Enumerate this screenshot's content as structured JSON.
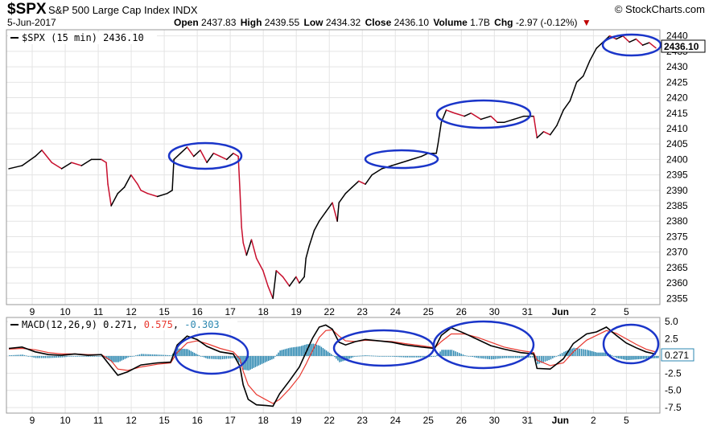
{
  "header": {
    "symbol": "$SPX",
    "name": "S&P 500 Large Cap Index",
    "exchange": "INDX",
    "source": "© StockCharts.com",
    "date": "5-Jun-2017",
    "open_label": "Open",
    "open": "2437.83",
    "high_label": "High",
    "high": "2439.55",
    "low_label": "Low",
    "low": "2434.32",
    "close_label": "Close",
    "close": "2436.10",
    "volume_label": "Volume",
    "volume": "1.7B",
    "chg_label": "Chg",
    "chg": "-2.97 (-0.12%)",
    "chg_arrow": "▼"
  },
  "price_legend": {
    "text": "$SPX (15 min) 2436.10"
  },
  "price_badge": "2436.10",
  "macd_legend": {
    "label": "MACD(12,26,9) 0.271, ",
    "signal": "0.575",
    "separator": ", ",
    "histogram": "-0.303"
  },
  "macd_badge": "0.271",
  "colors": {
    "price_up": "#000000",
    "price_down": "#c8102e",
    "macd": "#000000",
    "signal": "#e8382f",
    "histogram": "#2b87b0",
    "highlight": "#1a35c9",
    "grid": "#e4e4e4"
  },
  "chart_data": [
    {
      "type": "line",
      "title": "$SPX (15 min) 2436.10",
      "x_ticks": [
        "9",
        "10",
        "11",
        "12",
        "15",
        "16",
        "17",
        "18",
        "19",
        "22",
        "23",
        "24",
        "25",
        "26",
        "30",
        "31",
        "Jun",
        "2",
        "5"
      ],
      "y_ticks": [
        2355,
        2360,
        2365,
        2370,
        2375,
        2380,
        2385,
        2390,
        2395,
        2400,
        2405,
        2410,
        2415,
        2420,
        2425,
        2430,
        2435,
        2440
      ],
      "ylim": [
        2353,
        2442
      ],
      "series": [
        {
          "values": [
            [
              0.0,
              2397
            ],
            [
              0.4,
              2398
            ],
            [
              0.8,
              2401
            ],
            [
              1.0,
              2403
            ],
            [
              1.3,
              2399
            ],
            [
              1.6,
              2397
            ],
            [
              1.9,
              2399
            ],
            [
              2.2,
              2398
            ],
            [
              2.5,
              2400
            ],
            [
              2.8,
              2400
            ],
            [
              2.95,
              2399
            ],
            [
              3.0,
              2392
            ],
            [
              3.1,
              2385
            ],
            [
              3.3,
              2389
            ],
            [
              3.5,
              2391
            ],
            [
              3.7,
              2395
            ],
            [
              3.9,
              2392
            ],
            [
              4.0,
              2390
            ],
            [
              4.2,
              2389
            ],
            [
              4.5,
              2388
            ],
            [
              4.8,
              2389
            ],
            [
              4.95,
              2390
            ],
            [
              5.0,
              2400
            ],
            [
              5.2,
              2402
            ],
            [
              5.4,
              2404
            ],
            [
              5.6,
              2401
            ],
            [
              5.8,
              2403
            ],
            [
              6.0,
              2399
            ],
            [
              6.2,
              2402
            ],
            [
              6.4,
              2401
            ],
            [
              6.6,
              2400
            ],
            [
              6.8,
              2402
            ],
            [
              6.95,
              2401
            ],
            [
              7.0,
              2390
            ],
            [
              7.05,
              2378
            ],
            [
              7.1,
              2373
            ],
            [
              7.2,
              2369
            ],
            [
              7.35,
              2374
            ],
            [
              7.5,
              2368
            ],
            [
              7.7,
              2364
            ],
            [
              7.85,
              2359
            ],
            [
              8.0,
              2355
            ],
            [
              8.1,
              2364
            ],
            [
              8.3,
              2362
            ],
            [
              8.5,
              2359
            ],
            [
              8.7,
              2362
            ],
            [
              8.8,
              2360
            ],
            [
              8.95,
              2362
            ],
            [
              9.0,
              2368
            ],
            [
              9.1,
              2372
            ],
            [
              9.25,
              2377
            ],
            [
              9.4,
              2380
            ],
            [
              9.6,
              2383
            ],
            [
              9.8,
              2386
            ],
            [
              9.95,
              2380
            ],
            [
              10.0,
              2386
            ],
            [
              10.2,
              2389
            ],
            [
              10.4,
              2391
            ],
            [
              10.6,
              2393
            ],
            [
              10.8,
              2392
            ],
            [
              11.0,
              2395
            ],
            [
              11.3,
              2397
            ],
            [
              11.6,
              2398
            ],
            [
              11.9,
              2399
            ],
            [
              12.2,
              2400
            ],
            [
              12.5,
              2401
            ],
            [
              12.7,
              2402
            ],
            [
              12.95,
              2402
            ],
            [
              13.0,
              2405
            ],
            [
              13.1,
              2412
            ],
            [
              13.25,
              2416
            ],
            [
              13.5,
              2415
            ],
            [
              13.8,
              2414
            ],
            [
              14.0,
              2415
            ],
            [
              14.3,
              2413
            ],
            [
              14.6,
              2414
            ],
            [
              14.8,
              2412
            ],
            [
              15.0,
              2412
            ],
            [
              15.3,
              2413
            ],
            [
              15.6,
              2414
            ],
            [
              15.9,
              2414
            ],
            [
              16.0,
              2407
            ],
            [
              16.2,
              2409
            ],
            [
              16.4,
              2408
            ],
            [
              16.6,
              2411
            ],
            [
              16.8,
              2416
            ],
            [
              17.0,
              2419
            ],
            [
              17.2,
              2425
            ],
            [
              17.4,
              2427
            ],
            [
              17.6,
              2432
            ],
            [
              17.8,
              2436
            ],
            [
              18.0,
              2438
            ],
            [
              18.2,
              2440
            ],
            [
              18.4,
              2439
            ],
            [
              18.6,
              2440
            ],
            [
              18.8,
              2438
            ],
            [
              19.0,
              2439
            ],
            [
              19.2,
              2437
            ],
            [
              19.4,
              2437.83
            ],
            [
              19.6,
              2436.1
            ]
          ]
        }
      ]
    },
    {
      "type": "line",
      "title": "MACD(12,26,9) 0.271, 0.575, -0.303",
      "x_ticks": [
        "9",
        "10",
        "11",
        "12",
        "15",
        "16",
        "17",
        "18",
        "19",
        "22",
        "23",
        "24",
        "25",
        "26",
        "30",
        "31",
        "Jun",
        "2",
        "5"
      ],
      "y_ticks": [
        5.0,
        2.5,
        0.0,
        -2.5,
        -5.0,
        -7.5
      ],
      "y_tick_labels": [
        "5.0",
        "2.5",
        "",
        "-2.5",
        "-5.0",
        "-7.5"
      ],
      "ylim": [
        -8.3,
        5.6
      ],
      "series": [
        {
          "name": "MACD(12,26,9)",
          "values": [
            [
              0.0,
              1.1
            ],
            [
              0.4,
              1.3
            ],
            [
              0.8,
              0.6
            ],
            [
              1.2,
              0.2
            ],
            [
              1.6,
              0.1
            ],
            [
              2.0,
              0.3
            ],
            [
              2.4,
              0.1
            ],
            [
              2.8,
              0.2
            ],
            [
              3.1,
              -1.6
            ],
            [
              3.3,
              -2.8
            ],
            [
              3.6,
              -2.3
            ],
            [
              4.0,
              -1.3
            ],
            [
              4.5,
              -1.0
            ],
            [
              4.9,
              -0.9
            ],
            [
              5.1,
              1.6
            ],
            [
              5.4,
              2.9
            ],
            [
              5.7,
              2.4
            ],
            [
              6.0,
              1.4
            ],
            [
              6.4,
              0.6
            ],
            [
              6.8,
              0.3
            ],
            [
              7.0,
              -1.5
            ],
            [
              7.1,
              -4.2
            ],
            [
              7.25,
              -6.3
            ],
            [
              7.5,
              -7.1
            ],
            [
              7.8,
              -7.2
            ],
            [
              8.0,
              -7.3
            ],
            [
              8.2,
              -5.5
            ],
            [
              8.5,
              -3.6
            ],
            [
              8.8,
              -1.6
            ],
            [
              9.0,
              0.5
            ],
            [
              9.2,
              2.6
            ],
            [
              9.4,
              4.2
            ],
            [
              9.6,
              4.5
            ],
            [
              9.8,
              3.9
            ],
            [
              10.0,
              2.0
            ],
            [
              10.2,
              1.6
            ],
            [
              10.5,
              2.1
            ],
            [
              10.8,
              2.4
            ],
            [
              11.2,
              2.2
            ],
            [
              11.6,
              2.0
            ],
            [
              12.0,
              1.6
            ],
            [
              12.5,
              1.3
            ],
            [
              12.9,
              1.1
            ],
            [
              13.1,
              3.0
            ],
            [
              13.4,
              4.1
            ],
            [
              13.8,
              3.3
            ],
            [
              14.2,
              2.4
            ],
            [
              14.6,
              1.5
            ],
            [
              15.0,
              1.0
            ],
            [
              15.5,
              0.5
            ],
            [
              15.9,
              0.3
            ],
            [
              16.0,
              -1.8
            ],
            [
              16.4,
              -1.9
            ],
            [
              16.8,
              -0.4
            ],
            [
              17.1,
              1.8
            ],
            [
              17.5,
              3.2
            ],
            [
              17.8,
              3.5
            ],
            [
              18.1,
              4.2
            ],
            [
              18.4,
              3.0
            ],
            [
              18.7,
              1.9
            ],
            [
              19.0,
              1.2
            ],
            [
              19.3,
              0.6
            ],
            [
              19.6,
              0.271
            ]
          ]
        },
        {
          "name": "Signal",
          "values": [
            [
              0.0,
              1.0
            ],
            [
              0.4,
              1.1
            ],
            [
              0.8,
              0.9
            ],
            [
              1.2,
              0.5
            ],
            [
              1.6,
              0.3
            ],
            [
              2.0,
              0.3
            ],
            [
              2.4,
              0.2
            ],
            [
              2.8,
              0.2
            ],
            [
              3.1,
              -0.7
            ],
            [
              3.3,
              -1.9
            ],
            [
              3.6,
              -2.1
            ],
            [
              4.0,
              -1.6
            ],
            [
              4.5,
              -1.2
            ],
            [
              4.9,
              -1.0
            ],
            [
              5.1,
              0.5
            ],
            [
              5.4,
              1.9
            ],
            [
              5.7,
              2.2
            ],
            [
              6.0,
              1.8
            ],
            [
              6.4,
              1.1
            ],
            [
              6.8,
              0.6
            ],
            [
              7.0,
              -0.4
            ],
            [
              7.1,
              -2.2
            ],
            [
              7.25,
              -4.2
            ],
            [
              7.5,
              -5.6
            ],
            [
              7.8,
              -6.4
            ],
            [
              8.0,
              -6.9
            ],
            [
              8.2,
              -6.3
            ],
            [
              8.5,
              -4.8
            ],
            [
              8.8,
              -3.0
            ],
            [
              9.0,
              -1.2
            ],
            [
              9.2,
              0.8
            ],
            [
              9.4,
              2.7
            ],
            [
              9.6,
              3.7
            ],
            [
              9.8,
              3.8
            ],
            [
              10.0,
              2.9
            ],
            [
              10.2,
              2.2
            ],
            [
              10.5,
              2.1
            ],
            [
              10.8,
              2.3
            ],
            [
              11.2,
              2.2
            ],
            [
              11.6,
              2.1
            ],
            [
              12.0,
              1.8
            ],
            [
              12.5,
              1.5
            ],
            [
              12.9,
              1.2
            ],
            [
              13.1,
              2.1
            ],
            [
              13.4,
              3.2
            ],
            [
              13.8,
              3.2
            ],
            [
              14.2,
              2.7
            ],
            [
              14.6,
              2.0
            ],
            [
              15.0,
              1.3
            ],
            [
              15.5,
              0.8
            ],
            [
              15.9,
              0.5
            ],
            [
              16.0,
              -0.6
            ],
            [
              16.4,
              -1.4
            ],
            [
              16.8,
              -1.0
            ],
            [
              17.1,
              0.6
            ],
            [
              17.5,
              2.3
            ],
            [
              17.8,
              3.0
            ],
            [
              18.1,
              3.7
            ],
            [
              18.4,
              3.3
            ],
            [
              18.7,
              2.5
            ],
            [
              19.0,
              1.7
            ],
            [
              19.3,
              1.0
            ],
            [
              19.6,
              0.575
            ]
          ]
        },
        {
          "name": "Histogram",
          "type": "bar",
          "values": "macd_minus_signal"
        }
      ]
    }
  ]
}
